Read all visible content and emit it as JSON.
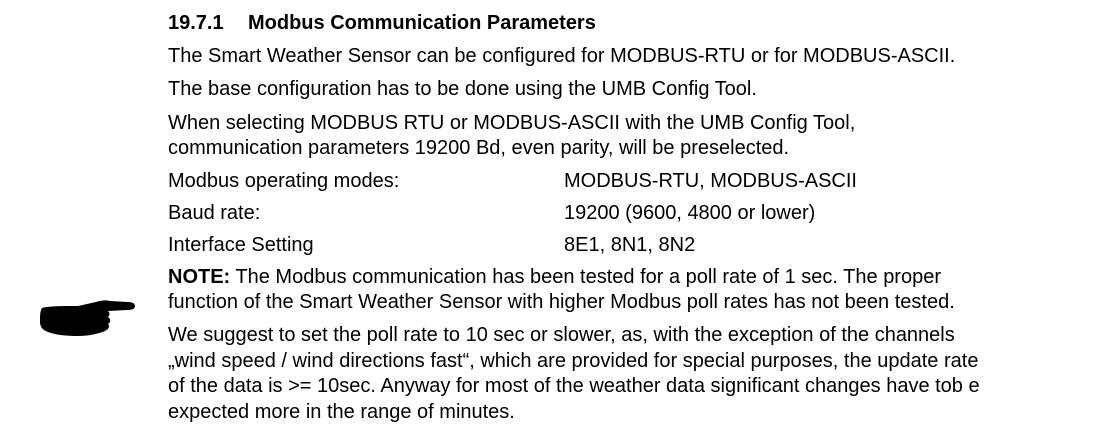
{
  "section": {
    "number": "19.7.1",
    "title": "Modbus Communication Parameters"
  },
  "paragraphs": [
    "The Smart Weather Sensor can be configured for MODBUS-RTU or for MODBUS-ASCII.",
    "The base configuration has to be done using the UMB Config Tool.",
    "When selecting MODBUS RTU or MODBUS-ASCII with the UMB Config Tool,",
    "communication parameters 19200 Bd, even parity, will be preselected."
  ],
  "parameters": [
    {
      "label": "Modbus operating modes:",
      "value": "MODBUS-RTU, MODBUS-ASCII"
    },
    {
      "label": "Baud rate:",
      "value": "19200 (9600, 4800 or lower)"
    },
    {
      "label": "Interface Setting",
      "value": "8E1, 8N1, 8N2"
    }
  ],
  "note": {
    "label": "NOTE:",
    "line1": " The Modbus communication has been tested for a poll rate of 1 sec. The proper",
    "line2": "function of the Smart Weather Sensor with higher Modbus poll rates has not been tested."
  },
  "suggestion": [
    "We suggest to set the poll rate to 10 sec or slower, as, with the exception of the channels",
    "„wind speed / wind directions fast“, which are provided for special purposes, the update rate",
    "of the data is >= 10sec. Anyway for most of the weather data significant changes have tob e",
    "expected more in the range of minutes."
  ],
  "icons": {
    "note_marker": "pointing-hand-icon"
  }
}
